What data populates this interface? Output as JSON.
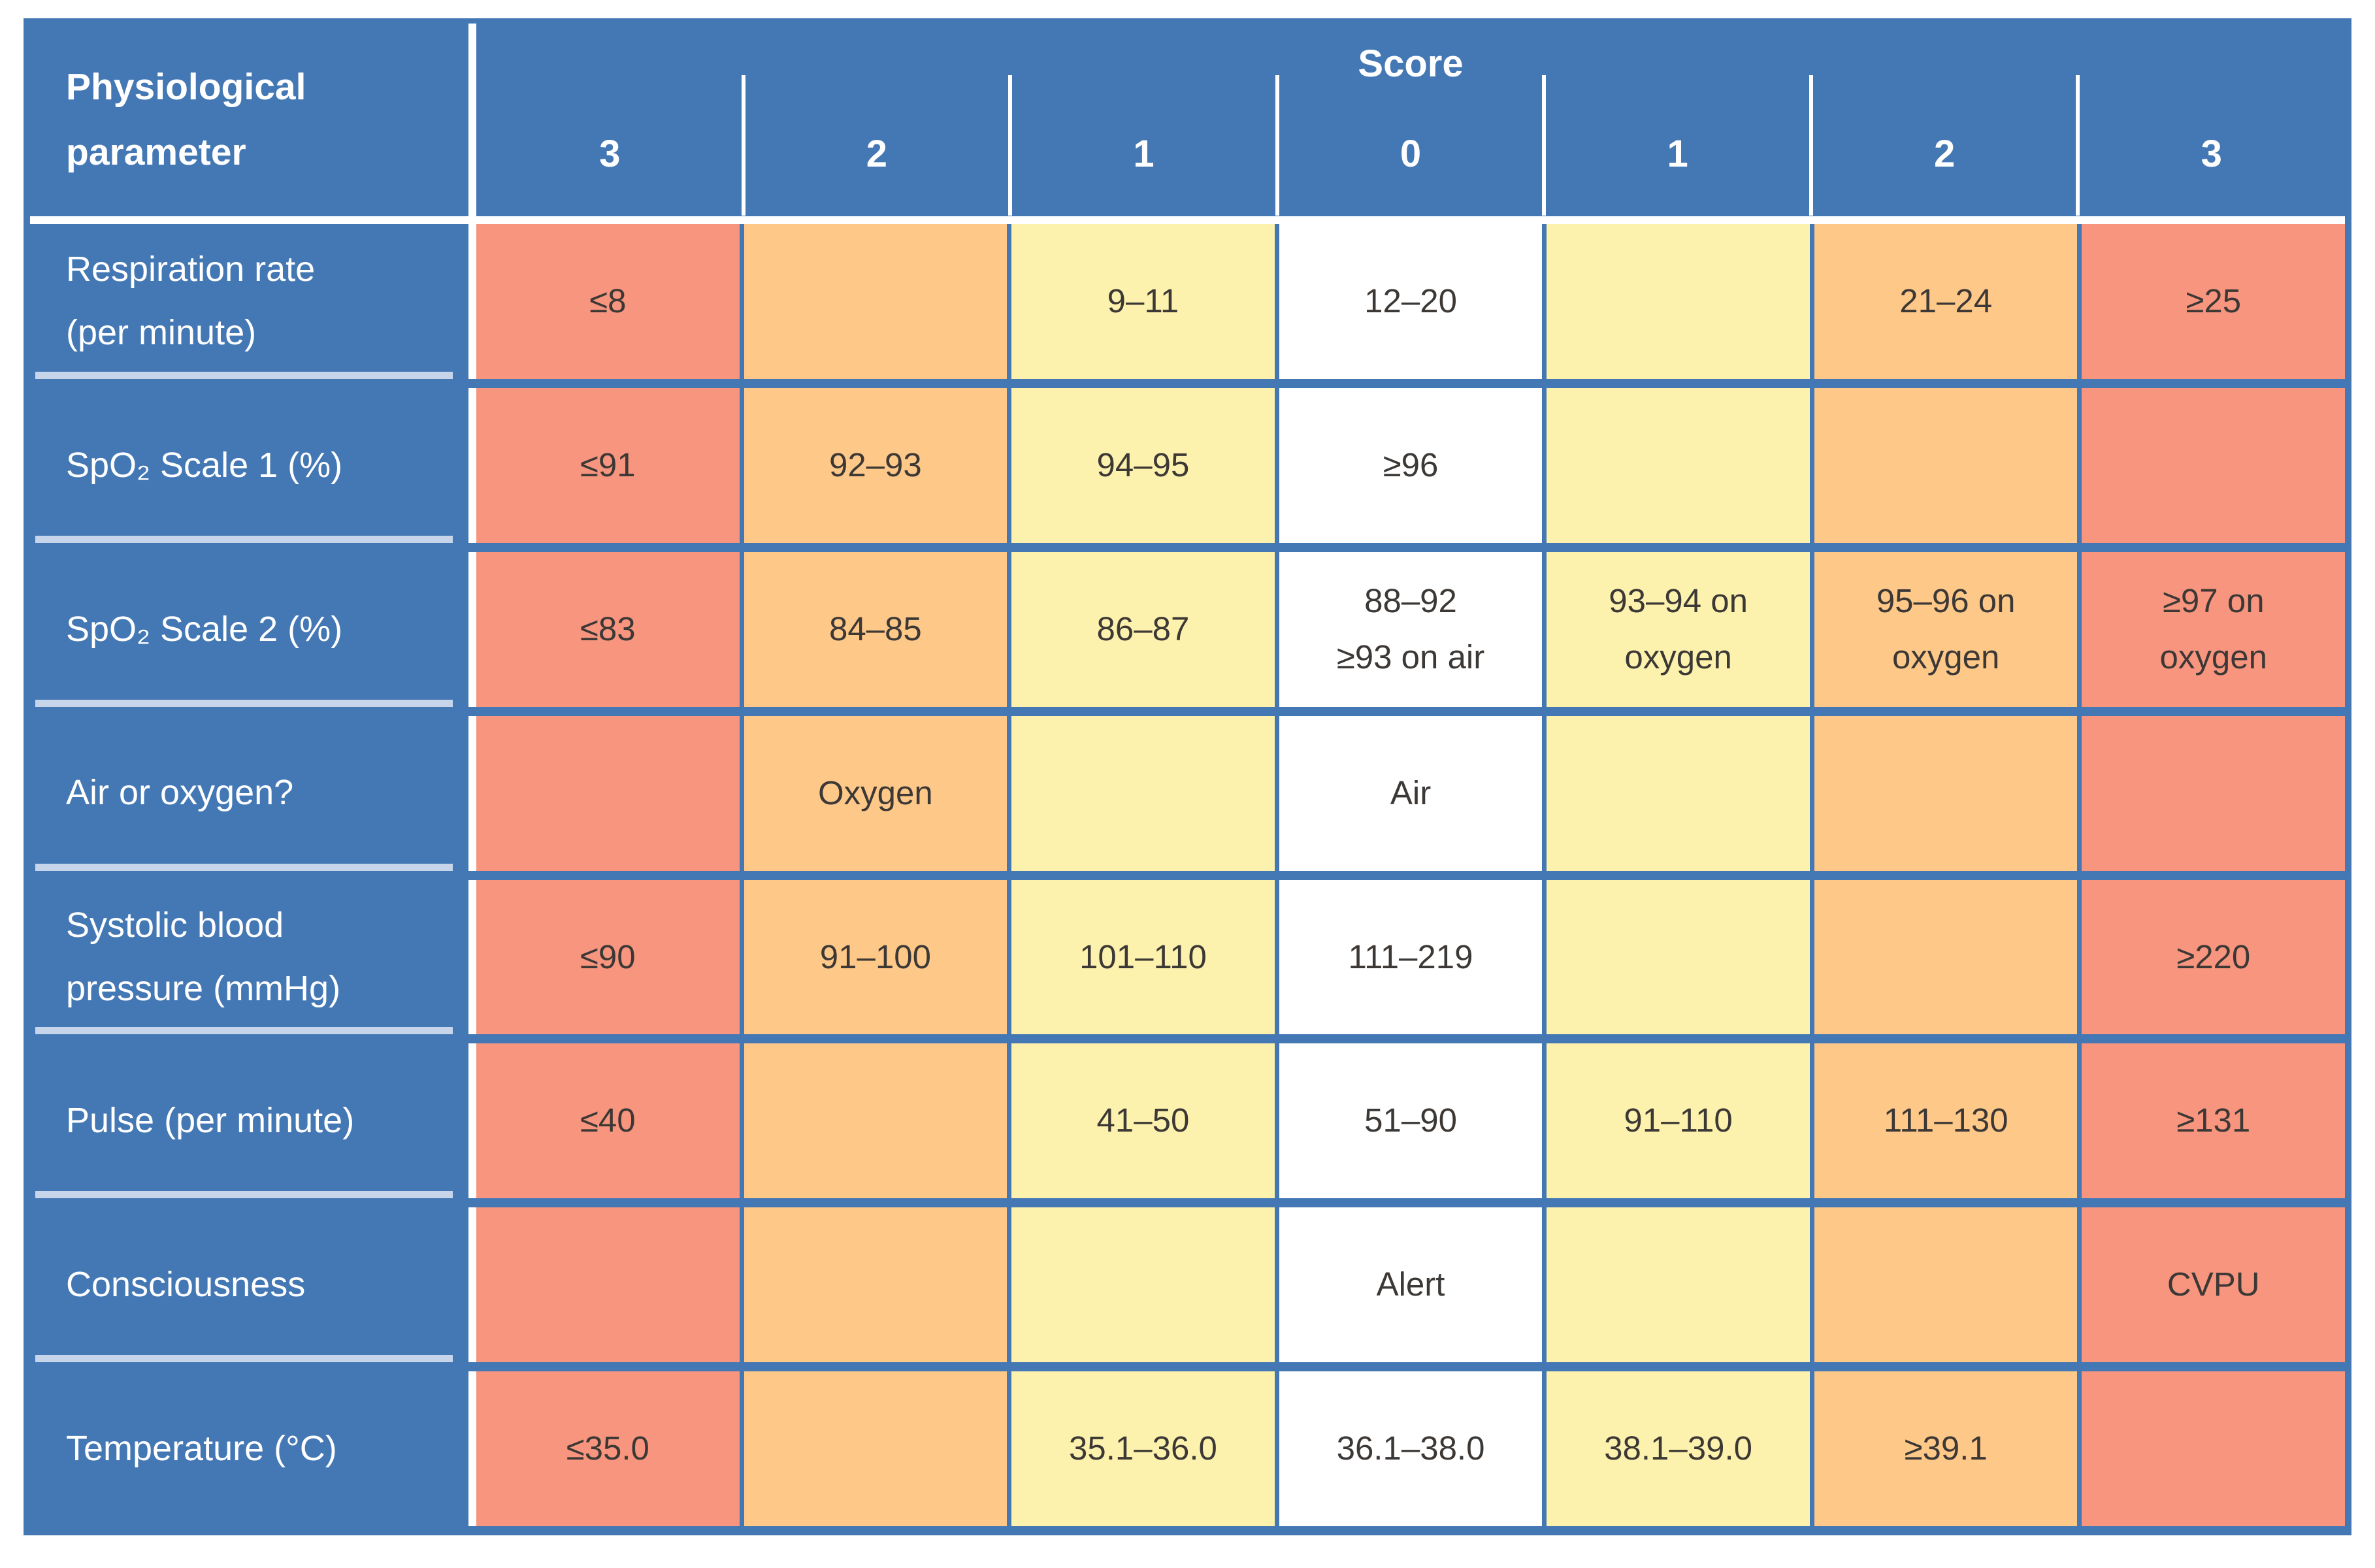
{
  "colors": {
    "table_blue": "#4478b4",
    "score3_red": "#f7957f",
    "score2_orange": "#fec889",
    "score1_yellow": "#fdf2ad",
    "score0_white": "#ffffff",
    "label_underline": "#c7d5eb",
    "cell_text": "#3c3835"
  },
  "chart_data": {
    "type": "table",
    "header": {
      "parameter": "Physiological\nparameter",
      "score": "Score",
      "score_columns": [
        "3",
        "2",
        "1",
        "0",
        "1",
        "2",
        "3"
      ]
    },
    "column_color_keys": [
      "score3_red",
      "score2_orange",
      "score1_yellow",
      "score0_white",
      "score1_yellow",
      "score2_orange",
      "score3_red"
    ],
    "rows": [
      {
        "parameter": "Respiration rate\n(per minute)",
        "cells": [
          "≤8",
          "",
          "9–11",
          "12–20",
          "",
          "21–24",
          "≥25"
        ]
      },
      {
        "parameter": "SpO₂ Scale 1 (%)",
        "cells": [
          "≤91",
          "92–93",
          "94–95",
          "≥96",
          "",
          "",
          ""
        ]
      },
      {
        "parameter": "SpO₂ Scale 2 (%)",
        "cells": [
          "≤83",
          "84–85",
          "86–87",
          "88–92\n≥93 on air",
          "93–94 on\noxygen",
          "95–96 on\noxygen",
          "≥97 on\noxygen"
        ]
      },
      {
        "parameter": "Air or oxygen?",
        "cells": [
          "",
          "Oxygen",
          "",
          "Air",
          "",
          "",
          ""
        ]
      },
      {
        "parameter": "Systolic blood\npressure (mmHg)",
        "cells": [
          "≤90",
          "91–100",
          "101–110",
          "111–219",
          "",
          "",
          "≥220"
        ]
      },
      {
        "parameter": "Pulse (per minute)",
        "cells": [
          "≤40",
          "",
          "41–50",
          "51–90",
          "91–110",
          "111–130",
          "≥131"
        ]
      },
      {
        "parameter": "Consciousness",
        "cells": [
          "",
          "",
          "",
          "Alert",
          "",
          "",
          "CVPU"
        ]
      },
      {
        "parameter": "Temperature (°C)",
        "cells": [
          "≤35.0",
          "",
          "35.1–36.0",
          "36.1–38.0",
          "38.1–39.0",
          "≥39.1",
          ""
        ]
      }
    ]
  }
}
